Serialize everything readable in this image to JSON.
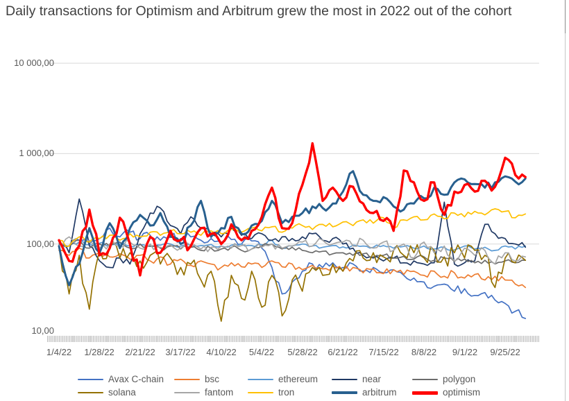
{
  "chart_data": {
    "type": "line",
    "title": "Daily transactions for Optimism and Arbitrum grew the most in 2022 out of the cohort",
    "y_axis": {
      "scale": "log",
      "tick_labels": [
        "10 000,00",
        "1 000,00",
        "100,00",
        "10,00"
      ],
      "tick_values": [
        10000,
        1000,
        100,
        10
      ],
      "grid": true,
      "gridline_color": "#d9d9d9"
    },
    "x_axis": {
      "tick_labels": [
        "1/4/22",
        "1/28/22",
        "2/21/22",
        "3/17/22",
        "4/10/22",
        "5/4/22",
        "5/28/22",
        "6/21/22",
        "7/15/22",
        "8/8/22",
        "9/1/22",
        "9/25/22"
      ],
      "tick_interval_days": 24,
      "start_date": "1/4/22"
    },
    "legend_position": "bottom",
    "x_day_offsets": [
      0,
      6,
      12,
      18,
      24,
      30,
      36,
      42,
      48,
      54,
      60,
      66,
      72,
      78,
      84,
      90,
      96,
      102,
      108,
      114,
      120,
      126,
      132,
      138,
      144,
      150,
      156,
      162,
      168,
      174,
      180,
      186,
      192,
      198,
      204,
      210,
      216,
      222,
      228,
      234,
      240,
      246,
      252,
      258,
      264,
      270,
      276
    ],
    "series": [
      {
        "label": "Avax C-chain",
        "color": "#4472C4",
        "width": 1.7,
        "noise": 0.05,
        "values": [
          100,
          95,
          110,
          100,
          115,
          150,
          120,
          135,
          115,
          125,
          110,
          120,
          115,
          120,
          110,
          115,
          105,
          112,
          100,
          108,
          90,
          55,
          28,
          38,
          50,
          60,
          55,
          62,
          55,
          60,
          50,
          55,
          48,
          52,
          45,
          42,
          38,
          34,
          36,
          30,
          32,
          27,
          29,
          24,
          22,
          18,
          15
        ]
      },
      {
        "label": "bsc",
        "color": "#ED7D31",
        "width": 1.7,
        "noise": 0.04,
        "values": [
          85,
          75,
          90,
          70,
          80,
          72,
          78,
          68,
          75,
          65,
          72,
          60,
          68,
          58,
          65,
          60,
          55,
          62,
          56,
          60,
          55,
          65,
          56,
          60,
          52,
          58,
          53,
          57,
          50,
          55,
          48,
          53,
          47,
          52,
          46,
          50,
          45,
          50,
          44,
          48,
          42,
          46,
          40,
          44,
          40,
          36,
          33
        ]
      },
      {
        "label": "ethereum",
        "color": "#5B9BD5",
        "width": 1.7,
        "noise": 0.02,
        "values": [
          100,
          95,
          105,
          98,
          102,
          96,
          100,
          95,
          98,
          94,
          97,
          100,
          95,
          98,
          96,
          99,
          95,
          97,
          100,
          96,
          98,
          110,
          90,
          95,
          100,
          95,
          92,
          96,
          93,
          97,
          95,
          92,
          96,
          90,
          94,
          90,
          95,
          88,
          92,
          86,
          95,
          88,
          92,
          85,
          95,
          88,
          95
        ]
      },
      {
        "label": "near",
        "color": "#1F3864",
        "width": 1.7,
        "noise": 0.04,
        "values": [
          105,
          80,
          315,
          95,
          65,
          55,
          70,
          60,
          130,
          220,
          250,
          160,
          130,
          200,
          150,
          130,
          120,
          150,
          125,
          115,
          130,
          110,
          120,
          115,
          120,
          130,
          110,
          115,
          100,
          90,
          75,
          70,
          65,
          70,
          62,
          65,
          60,
          62,
          290,
          60,
          62,
          65,
          165,
          130,
          115,
          100,
          92
        ]
      },
      {
        "label": "polygon",
        "color": "#6B6B6B",
        "width": 1.7,
        "noise": 0.03,
        "values": [
          100,
          95,
          110,
          90,
          100,
          95,
          105,
          90,
          100,
          95,
          90,
          95,
          88,
          92,
          85,
          90,
          88,
          92,
          85,
          88,
          95,
          100,
          88,
          92,
          85,
          80,
          83,
          78,
          80,
          75,
          78,
          72,
          75,
          70,
          73,
          68,
          72,
          66,
          70,
          64,
          68,
          62,
          66,
          60,
          65,
          62,
          66
        ]
      },
      {
        "label": "solana",
        "color": "#947100",
        "width": 1.7,
        "noise": 0.12,
        "values": [
          95,
          28,
          75,
          19,
          85,
          90,
          70,
          80,
          65,
          75,
          60,
          70,
          55,
          60,
          40,
          50,
          14,
          45,
          25,
          50,
          20,
          45,
          16,
          40,
          30,
          55,
          45,
          60,
          50,
          65,
          70,
          80,
          72,
          85,
          75,
          80,
          70,
          85,
          72,
          80,
          70,
          85,
          75,
          33,
          70,
          62,
          66
        ]
      },
      {
        "label": "fantom",
        "color": "#A6A6A6",
        "width": 1.7,
        "noise": 0.05,
        "values": [
          105,
          120,
          95,
          110,
          90,
          100,
          95,
          105,
          90,
          100,
          92,
          98,
          90,
          95,
          88,
          92,
          95,
          90,
          96,
          88,
          92,
          100,
          90,
          95,
          105,
          95,
          110,
          100,
          105,
          95,
          110,
          90,
          105,
          85,
          100,
          70,
          105,
          80,
          95,
          65,
          90,
          75,
          85,
          60,
          80,
          65,
          72
        ]
      },
      {
        "label": "tron",
        "color": "#FFC000",
        "width": 1.7,
        "noise": 0.03,
        "values": [
          110,
          95,
          120,
          105,
          115,
          125,
          110,
          130,
          120,
          135,
          125,
          140,
          130,
          135,
          125,
          140,
          130,
          145,
          135,
          150,
          140,
          155,
          135,
          150,
          160,
          145,
          165,
          155,
          175,
          160,
          185,
          170,
          195,
          150,
          185,
          200,
          185,
          215,
          190,
          220,
          200,
          230,
          210,
          245,
          230,
          195,
          215
        ]
      },
      {
        "label": "arbitrum",
        "color": "#28608F",
        "width": 3,
        "noise": 0.05,
        "values": [
          95,
          35,
          60,
          150,
          80,
          170,
          90,
          150,
          210,
          160,
          220,
          120,
          100,
          160,
          300,
          120,
          150,
          200,
          130,
          160,
          180,
          300,
          170,
          200,
          220,
          260,
          250,
          280,
          380,
          640,
          350,
          300,
          330,
          260,
          240,
          280,
          320,
          420,
          350,
          480,
          520,
          460,
          420,
          480,
          560,
          490,
          530
        ]
      },
      {
        "label": "optimism",
        "color": "#FF0000",
        "width": 3.4,
        "noise": 0.07,
        "values": [
          110,
          65,
          95,
          240,
          75,
          90,
          195,
          100,
          45,
          120,
          80,
          140,
          110,
          95,
          150,
          130,
          100,
          165,
          110,
          140,
          200,
          420,
          150,
          170,
          450,
          1300,
          300,
          420,
          300,
          430,
          280,
          220,
          180,
          140,
          650,
          480,
          300,
          480,
          210,
          380,
          450,
          380,
          500,
          430,
          900,
          580,
          550
        ]
      }
    ]
  }
}
